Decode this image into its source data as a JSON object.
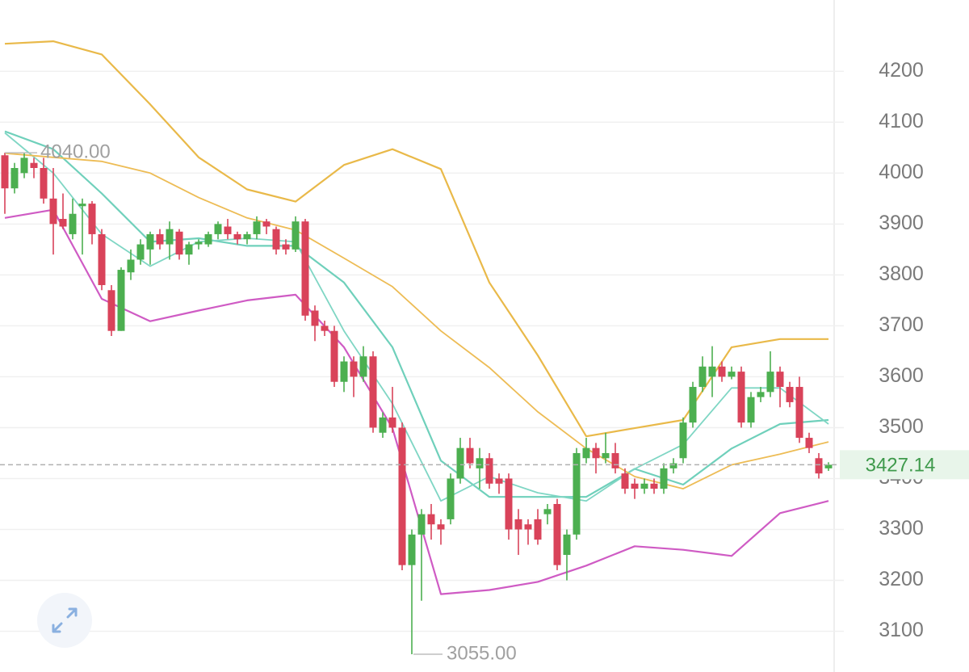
{
  "chart_data": {
    "type": "candlestick",
    "up_color": "#4caf50",
    "down_color": "#d9435a",
    "open": [
      4035,
      3970,
      4000,
      4020,
      4010,
      3950,
      3910,
      3880,
      3935,
      3940,
      3880,
      3770,
      3690,
      3805,
      3830,
      3850,
      3880,
      3860,
      3885,
      3840,
      3860,
      3860,
      3880,
      3895,
      3880,
      3870,
      3880,
      3905,
      3890,
      3860,
      3850,
      3905,
      3730,
      3700,
      3690,
      3590,
      3630,
      3600,
      3640,
      3490,
      3520,
      3500,
      3230,
      3290,
      3330,
      3310,
      3320,
      3400,
      3460,
      3420,
      3440,
      3400,
      3400,
      3320,
      3310,
      3320,
      3330,
      3350,
      3250,
      3290,
      3440,
      3460,
      3440,
      3450,
      3410,
      3390,
      3380,
      3390,
      3380,
      3420,
      3440,
      3510,
      3580,
      3600,
      3620,
      3600,
      3610,
      3510,
      3560,
      3570,
      3610,
      3580,
      3580,
      3480,
      3440,
      3420
    ],
    "high": [
      4040,
      4020,
      4040,
      4030,
      4030,
      4010,
      3960,
      3950,
      3950,
      3945,
      3890,
      3780,
      3815,
      3850,
      3870,
      3885,
      3890,
      3905,
      3890,
      3865,
      3870,
      3885,
      3905,
      3910,
      3885,
      3885,
      3915,
      3910,
      3895,
      3870,
      3915,
      3910,
      3740,
      3710,
      3700,
      3640,
      3640,
      3660,
      3650,
      3530,
      3580,
      3510,
      3300,
      3340,
      3350,
      3320,
      3410,
      3480,
      3480,
      3460,
      3450,
      3410,
      3410,
      3340,
      3320,
      3340,
      3350,
      3360,
      3300,
      3460,
      3480,
      3470,
      3490,
      3470,
      3420,
      3400,
      3400,
      3400,
      3430,
      3440,
      3520,
      3590,
      3640,
      3660,
      3630,
      3620,
      3620,
      3570,
      3580,
      3650,
      3620,
      3590,
      3600,
      3490,
      3450,
      3432
    ],
    "low": [
      3920,
      3960,
      3990,
      3990,
      3940,
      3840,
      3890,
      3870,
      3840,
      3860,
      3770,
      3680,
      3690,
      3790,
      3820,
      3820,
      3850,
      3830,
      3830,
      3820,
      3850,
      3855,
      3870,
      3870,
      3860,
      3860,
      3870,
      3880,
      3840,
      3840,
      3845,
      3710,
      3670,
      3680,
      3580,
      3570,
      3560,
      3590,
      3490,
      3480,
      3490,
      3220,
      3055,
      3160,
      3280,
      3270,
      3310,
      3390,
      3420,
      3380,
      3380,
      3370,
      3280,
      3250,
      3270,
      3270,
      3310,
      3220,
      3200,
      3280,
      3430,
      3410,
      3430,
      3410,
      3370,
      3360,
      3370,
      3370,
      3370,
      3410,
      3430,
      3500,
      3570,
      3560,
      3590,
      3595,
      3500,
      3500,
      3550,
      3560,
      3540,
      3540,
      3470,
      3450,
      3400,
      3415
    ],
    "close": [
      3970,
      4010,
      4030,
      4010,
      3950,
      3900,
      3895,
      3920,
      3940,
      3880,
      3780,
      3690,
      3810,
      3830,
      3860,
      3880,
      3860,
      3890,
      3840,
      3860,
      3865,
      3880,
      3900,
      3880,
      3870,
      3880,
      3905,
      3895,
      3850,
      3850,
      3905,
      3720,
      3700,
      3690,
      3590,
      3630,
      3600,
      3640,
      3500,
      3520,
      3500,
      3230,
      3290,
      3330,
      3310,
      3300,
      3400,
      3460,
      3430,
      3440,
      3390,
      3390,
      3300,
      3300,
      3300,
      3280,
      3340,
      3230,
      3290,
      3450,
      3460,
      3440,
      3450,
      3420,
      3380,
      3380,
      3390,
      3380,
      3420,
      3430,
      3510,
      3580,
      3620,
      3620,
      3600,
      3610,
      3510,
      3560,
      3570,
      3610,
      3580,
      3550,
      3480,
      3460,
      3410,
      3427.14
    ],
    "lines": [
      {
        "color": "#e9b949",
        "width": 2.2,
        "x": [
          0,
          5,
          10,
          15,
          20,
          25,
          30,
          35,
          40,
          45,
          50,
          55,
          60,
          65,
          70,
          75,
          80,
          85
        ],
        "values": [
          4254,
          4259,
          4233,
          4135,
          4031,
          3968,
          3944,
          4016,
          4047,
          4008,
          3785,
          3642,
          3483,
          3499,
          3515,
          3658,
          3674,
          3674
        ]
      },
      {
        "color": "#6fd0bb",
        "width": 2.2,
        "x": [
          0,
          5,
          10,
          15,
          20,
          25,
          30,
          35,
          40,
          45,
          50,
          55,
          60,
          65,
          70,
          75,
          80,
          85
        ],
        "values": [
          4082,
          4047,
          3960,
          3865,
          3872,
          3857,
          3857,
          3785,
          3658,
          3435,
          3364,
          3364,
          3364,
          3419,
          3388,
          3459,
          3507,
          3515
        ]
      },
      {
        "color": "#cf5bc4",
        "width": 2.2,
        "x": [
          0,
          5,
          10,
          15,
          20,
          25,
          30,
          35,
          40,
          45,
          50,
          55,
          60,
          65,
          70,
          75,
          80,
          85
        ],
        "values": [
          3912,
          3928,
          3753,
          3709,
          3730,
          3750,
          3761,
          3658,
          3499,
          3173,
          3181,
          3197,
          3229,
          3267,
          3260,
          3248,
          3332,
          3356
        ]
      },
      {
        "color": "#7fd6c4",
        "width": 1.8,
        "x": [
          0,
          5,
          10,
          15,
          20,
          25,
          30,
          35,
          40,
          45,
          50,
          55,
          60,
          65,
          70,
          75,
          80,
          85
        ],
        "values": [
          4079,
          4000,
          3880,
          3817,
          3865,
          3872,
          3865,
          3690,
          3547,
          3356,
          3404,
          3372,
          3356,
          3419,
          3467,
          3578,
          3578,
          3507
        ]
      },
      {
        "color": "#edbc55",
        "width": 1.8,
        "x": [
          0,
          5,
          10,
          15,
          20,
          25,
          30,
          35,
          40,
          45,
          50,
          55,
          60,
          65,
          70,
          75,
          80,
          85
        ],
        "values": [
          4039,
          4031,
          4023,
          4000,
          3952,
          3912,
          3888,
          3833,
          3777,
          3690,
          3618,
          3531,
          3459,
          3404,
          3380,
          3427,
          3448,
          3472
        ]
      }
    ],
    "max_label": {
      "value": 4040,
      "label": "4040.00"
    },
    "min_label": {
      "value": 3055,
      "label": "3055.00"
    },
    "ylim": [
      3020,
      4340
    ],
    "yticks": [
      3100,
      3200,
      3300,
      3400,
      3500,
      3600,
      3700,
      3800,
      3900,
      4000,
      4100,
      4200
    ],
    "grid": true
  }
}
